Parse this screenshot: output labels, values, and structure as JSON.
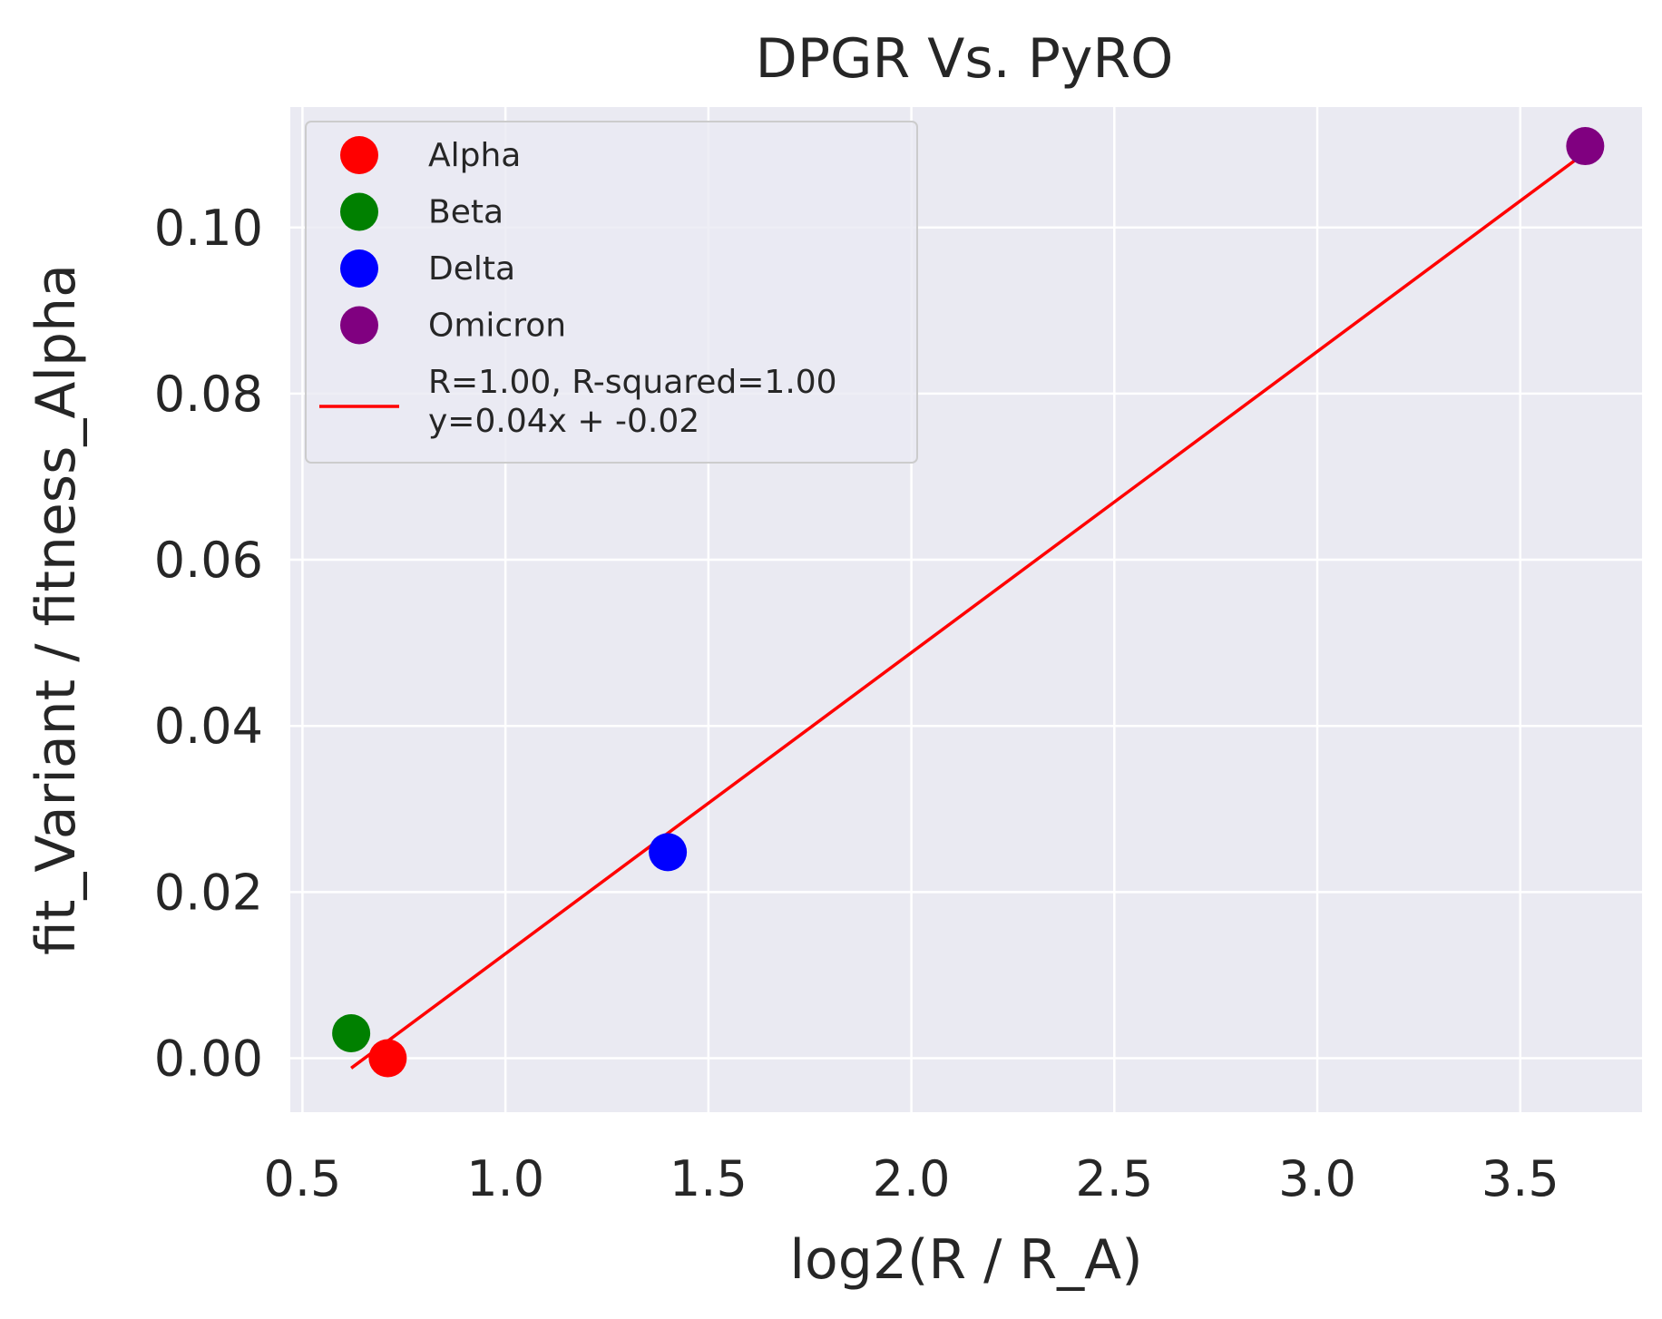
{
  "chart_data": {
    "type": "scatter",
    "title": "DPGR Vs. PyRO",
    "xlabel": "log2(R / R_A)",
    "ylabel": "fit_Variant / fitness_Alpha",
    "xlim": [
      0.47,
      3.8
    ],
    "ylim": [
      -0.0065,
      0.1145
    ],
    "xticks": [
      0.5,
      1.0,
      1.5,
      2.0,
      2.5,
      3.0,
      3.5
    ],
    "xtick_labels": [
      "0.5",
      "1.0",
      "1.5",
      "2.0",
      "2.5",
      "3.0",
      "3.5"
    ],
    "yticks": [
      0.0,
      0.02,
      0.04,
      0.06,
      0.08,
      0.1
    ],
    "ytick_labels": [
      "0.00",
      "0.02",
      "0.04",
      "0.06",
      "0.08",
      "0.10"
    ],
    "grid": true,
    "legend_position": "top-left",
    "background_color": "#EAEAF2",
    "grid_color": "#FFFFFF",
    "series": [
      {
        "name": "Alpha",
        "color": "#FF0000",
        "x": [
          0.71
        ],
        "y": [
          0.0
        ]
      },
      {
        "name": "Beta",
        "color": "#008000",
        "x": [
          0.62
        ],
        "y": [
          0.003
        ]
      },
      {
        "name": "Delta",
        "color": "#0000FF",
        "x": [
          1.4
        ],
        "y": [
          0.0248
        ]
      },
      {
        "name": "Omicron",
        "color": "#800080",
        "x": [
          3.66
        ],
        "y": [
          0.1098
        ]
      }
    ],
    "fit_line": {
      "label_lines": [
        "R=1.00, R-squared=1.00",
        "y=0.04x + -0.02"
      ],
      "color": "#FF0000",
      "x": [
        0.62,
        3.66
      ],
      "y": [
        -0.0012,
        0.109
      ]
    }
  }
}
